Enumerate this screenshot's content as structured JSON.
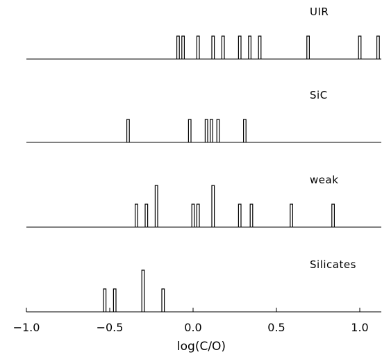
{
  "chart_data": {
    "type": "histogram-panels",
    "xlabel": "log(C/O)",
    "xlim": [
      -1.0,
      1.17
    ],
    "x_ticks": [
      {
        "value": -1.0,
        "label": "−1.0"
      },
      {
        "value": -0.5,
        "label": "−0.5"
      },
      {
        "value": 0.0,
        "label": "0.0"
      },
      {
        "value": 0.5,
        "label": "0.5"
      },
      {
        "value": 1.0,
        "label": "1.0"
      }
    ],
    "bar_width": 0.015,
    "panels": [
      {
        "name": "UIR",
        "bars": [
          {
            "x": -0.09,
            "count": 1
          },
          {
            "x": -0.06,
            "count": 1
          },
          {
            "x": 0.03,
            "count": 1
          },
          {
            "x": 0.12,
            "count": 1
          },
          {
            "x": 0.18,
            "count": 1
          },
          {
            "x": 0.28,
            "count": 1
          },
          {
            "x": 0.34,
            "count": 1
          },
          {
            "x": 0.4,
            "count": 1
          },
          {
            "x": 0.69,
            "count": 1
          },
          {
            "x": 1.0,
            "count": 1
          },
          {
            "x": 1.11,
            "count": 1
          }
        ]
      },
      {
        "name": "SiC",
        "bars": [
          {
            "x": -0.39,
            "count": 1
          },
          {
            "x": -0.02,
            "count": 1
          },
          {
            "x": 0.08,
            "count": 1
          },
          {
            "x": 0.11,
            "count": 1
          },
          {
            "x": 0.15,
            "count": 1
          },
          {
            "x": 0.31,
            "count": 1
          }
        ]
      },
      {
        "name": "weak",
        "bars": [
          {
            "x": -0.34,
            "count": 1
          },
          {
            "x": -0.28,
            "count": 1
          },
          {
            "x": -0.22,
            "count": 2
          },
          {
            "x": 0.0,
            "count": 1
          },
          {
            "x": 0.03,
            "count": 1
          },
          {
            "x": 0.12,
            "count": 2
          },
          {
            "x": 0.28,
            "count": 1
          },
          {
            "x": 0.35,
            "count": 1
          },
          {
            "x": 0.59,
            "count": 1
          },
          {
            "x": 0.84,
            "count": 1
          }
        ]
      },
      {
        "name": "Silicates",
        "bars": [
          {
            "x": -0.53,
            "count": 1
          },
          {
            "x": -0.47,
            "count": 1
          },
          {
            "x": -0.3,
            "count": 2
          },
          {
            "x": -0.18,
            "count": 1
          }
        ]
      }
    ]
  }
}
